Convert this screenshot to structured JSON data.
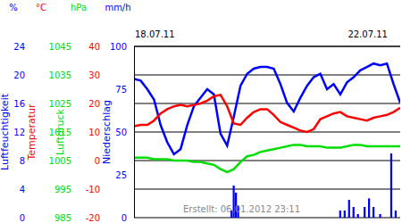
{
  "chart_data": {
    "type": "line",
    "annotation": "Erstellt: 06.01.2012 23:11",
    "xlim": [
      0,
      120
    ],
    "xticks": [
      {
        "value": 0,
        "label": "18.07.11"
      },
      {
        "value": 96,
        "label": "22.07.11"
      }
    ],
    "grid": true,
    "series": [
      {
        "name": "Luftfeuchtigkeit",
        "unit": "%",
        "color": "#0000ff",
        "ylim": [
          0,
          100
        ],
        "yticks": [
          0,
          25,
          50,
          75,
          100
        ],
        "x": [
          0,
          3,
          6,
          9,
          12,
          15,
          18,
          21,
          24,
          27,
          30,
          33,
          36,
          39,
          42,
          45,
          48,
          51,
          54,
          57,
          60,
          63,
          66,
          69,
          72,
          75,
          78,
          81,
          84,
          87,
          90,
          93,
          96,
          99,
          102,
          105,
          108,
          111,
          114,
          117,
          120
        ],
        "values": [
          81,
          80,
          75,
          69,
          54,
          44,
          37,
          40,
          54,
          65,
          70,
          75,
          72,
          49,
          42,
          59,
          77,
          84,
          87,
          88,
          88,
          87,
          78,
          67,
          62,
          70,
          77,
          82,
          84,
          75,
          78,
          72,
          79,
          82,
          86,
          88,
          90,
          89,
          90,
          78,
          67
        ]
      },
      {
        "name": "Temperatur",
        "unit": "°C",
        "color": "#ff0000",
        "ylim": [
          -20,
          40
        ],
        "yticks": [
          -20,
          -10,
          0,
          10,
          20,
          30,
          40
        ],
        "x": [
          0,
          3,
          6,
          9,
          12,
          15,
          18,
          21,
          24,
          27,
          30,
          33,
          36,
          39,
          42,
          45,
          48,
          51,
          54,
          57,
          60,
          63,
          66,
          69,
          72,
          75,
          78,
          81,
          84,
          87,
          90,
          93,
          96,
          99,
          102,
          105,
          108,
          111,
          114,
          117,
          120
        ],
        "values": [
          12,
          12.5,
          12.5,
          14,
          16.5,
          18,
          19,
          19.5,
          19,
          19.5,
          20,
          21,
          22.5,
          23,
          19,
          13,
          12.5,
          15,
          17,
          18,
          18,
          16,
          13.5,
          12.5,
          11.5,
          10.5,
          10,
          11,
          14.5,
          15.5,
          16.5,
          17,
          15.5,
          15,
          14.5,
          14,
          15,
          15.5,
          16,
          17,
          18.5
        ]
      },
      {
        "name": "Luftdruck",
        "unit": "hPa",
        "color": "#00dd00",
        "ylim": [
          985,
          1045
        ],
        "yticks": [
          985,
          995,
          1005,
          1015,
          1025,
          1035,
          1045
        ],
        "x": [
          0,
          3,
          6,
          9,
          12,
          15,
          18,
          21,
          24,
          27,
          30,
          33,
          36,
          39,
          42,
          45,
          48,
          51,
          54,
          57,
          60,
          63,
          66,
          69,
          72,
          75,
          78,
          81,
          84,
          87,
          90,
          93,
          96,
          99,
          102,
          105,
          108,
          111,
          114,
          117,
          120
        ],
        "values": [
          1006,
          1006,
          1006,
          1005.5,
          1005.5,
          1005.5,
          1005,
          1005,
          1005,
          1004.5,
          1004.5,
          1004,
          1003.5,
          1002,
          1001,
          1002,
          1004.5,
          1006.5,
          1007,
          1008,
          1008.5,
          1009,
          1009.5,
          1010,
          1010.5,
          1010.5,
          1010,
          1010,
          1010,
          1009.5,
          1009.5,
          1009.5,
          1010,
          1010.5,
          1010.5,
          1010,
          1010,
          1010,
          1010,
          1010,
          1010
        ]
      },
      {
        "name": "Niederschlag",
        "unit": "mm/h",
        "color": "#0000ff",
        "type": "bar",
        "ylim": [
          0,
          24
        ],
        "yticks": [
          0,
          4,
          8,
          12,
          16,
          20,
          24
        ],
        "x": [
          44,
          45,
          46,
          47,
          93,
          95,
          97,
          99,
          101,
          104,
          106,
          108,
          111,
          116,
          118
        ],
        "values": [
          1,
          4.5,
          3.5,
          1.7,
          1,
          1,
          2.5,
          1.5,
          0.5,
          1.5,
          2.7,
          1.5,
          0.5,
          9,
          1
        ]
      }
    ]
  }
}
